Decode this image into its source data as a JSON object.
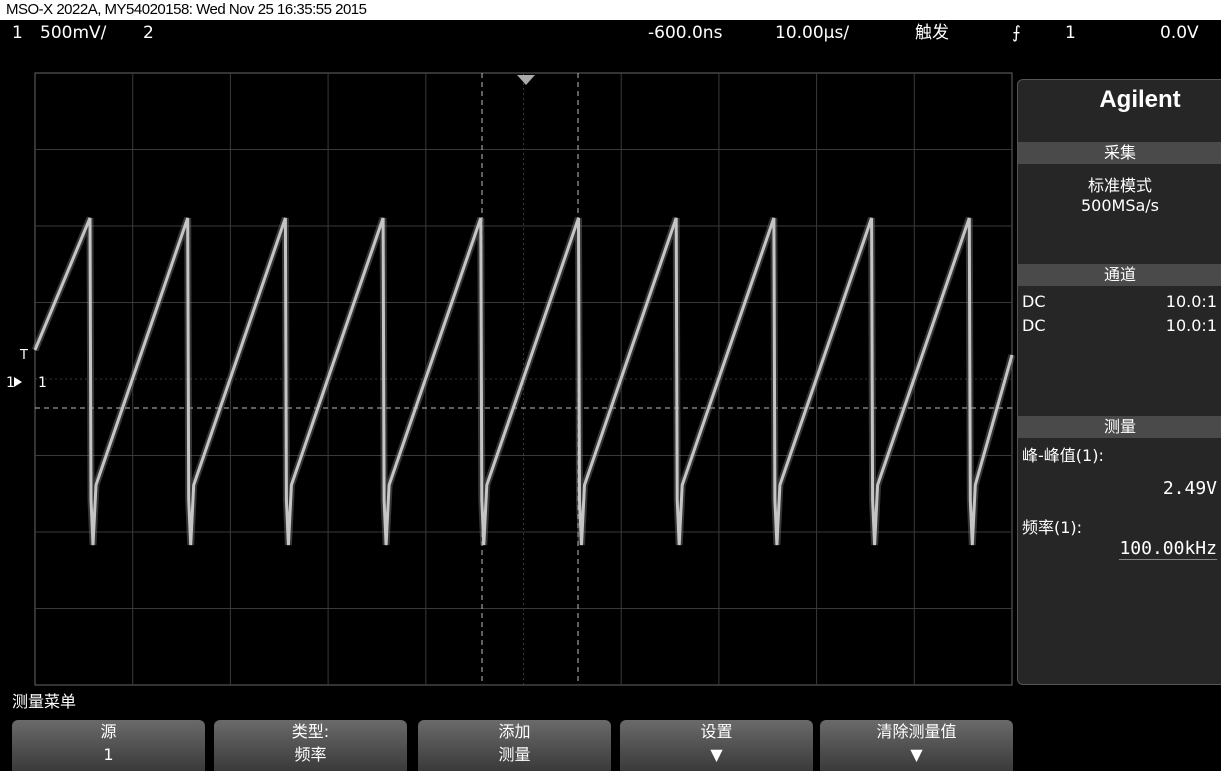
{
  "header": {
    "title": "MSO-X 2022A, MY54020158: Wed Nov 25 16:35:55 2015"
  },
  "status_bar": {
    "ch1": "1",
    "ch1_scale": "500mV/",
    "ch2": "2",
    "delay": "-600.0ns",
    "timebase": "10.00µs/",
    "trigger_label": "触发",
    "trigger_source": "1",
    "trigger_level": "0.0V"
  },
  "screen": {
    "ch1_marker": "1",
    "trigger_marker": "T"
  },
  "side_panel": {
    "brand": "Agilent",
    "acquire": {
      "title": "采集",
      "mode": "标准模式",
      "rate": "500MSa/s"
    },
    "channels": {
      "title": "通道",
      "rows": [
        [
          "DC",
          "10.0:1"
        ],
        [
          "DC",
          "10.0:1"
        ]
      ]
    },
    "measure": {
      "title": "测量",
      "items": [
        {
          "name": "峰-峰值(1):",
          "value": "2.49V"
        },
        {
          "name": "频率(1):",
          "value": "100.00kHz"
        }
      ]
    }
  },
  "menu": {
    "title": "测量菜单",
    "softkeys": [
      {
        "top": "源",
        "bottom": "1"
      },
      {
        "top": "类型:",
        "bottom": "频率"
      },
      {
        "top": "添加",
        "bottom": "测量"
      },
      {
        "top": "设置"
      },
      {
        "top": "清除测量值"
      }
    ]
  }
}
